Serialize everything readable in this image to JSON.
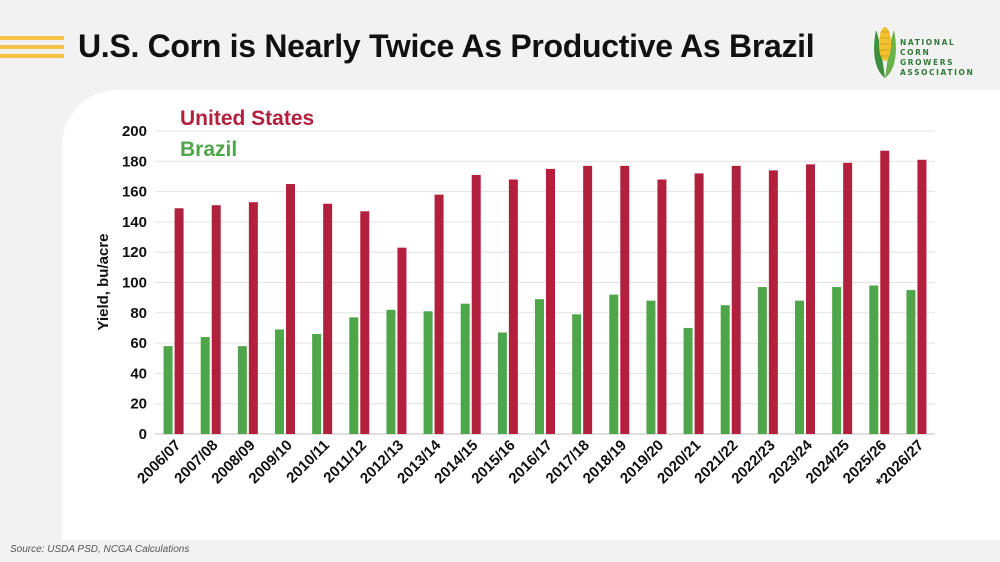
{
  "header": {
    "title": "U.S. Corn is Nearly Twice As Productive As Brazil",
    "logo_text": [
      "NATIONAL",
      "CORN GROWERS",
      "ASSOCIATION"
    ]
  },
  "footer": {
    "source": "Source: USDA PSD, NCGA Calculations"
  },
  "colors": {
    "us": "#b3203e",
    "brazil": "#4fa64a",
    "accent": "#f5c342",
    "logo": "#2f7a36"
  },
  "chart_data": {
    "type": "bar",
    "ylabel": "Yield, bu/acre",
    "xlabel": "",
    "ylim": [
      0,
      200
    ],
    "yticks": [
      0,
      20,
      40,
      60,
      80,
      100,
      120,
      140,
      160,
      180,
      200
    ],
    "grid": true,
    "legend_position": "top-left",
    "categories": [
      "2006/07",
      "2007/08",
      "2008/09",
      "2009/10",
      "2010/11",
      "2011/12",
      "2012/13",
      "2013/14",
      "2014/15",
      "2015/16",
      "2016/17",
      "2017/18",
      "2018/19",
      "2019/20",
      "2020/21",
      "2021/22",
      "2022/23",
      "2023/24",
      "2024/25",
      "2025/26",
      "*2026/27"
    ],
    "series": [
      {
        "name": "Brazil",
        "color": "#4fa64a",
        "values": [
          58,
          64,
          58,
          69,
          66,
          77,
          82,
          81,
          86,
          67,
          89,
          79,
          92,
          88,
          70,
          85,
          97,
          88,
          97,
          98,
          95
        ]
      },
      {
        "name": "United States",
        "color": "#b3203e",
        "values": [
          149,
          151,
          153,
          165,
          152,
          147,
          123,
          158,
          171,
          168,
          175,
          177,
          177,
          168,
          172,
          177,
          174,
          178,
          179,
          187,
          181
        ]
      }
    ]
  }
}
